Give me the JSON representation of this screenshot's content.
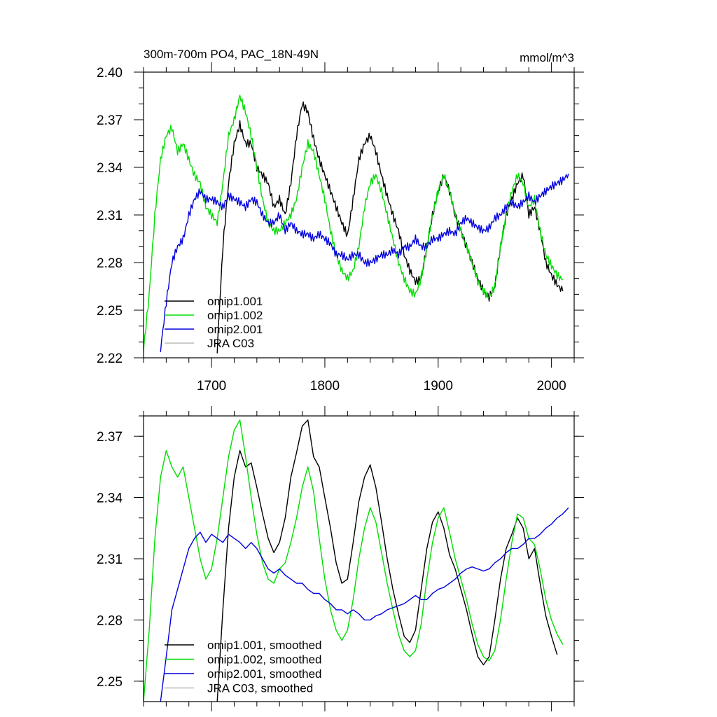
{
  "chart_data": [
    {
      "type": "line",
      "title": "300m-700m PO4, PAC_18N-49N",
      "units": "mmol/m^3",
      "xlim": [
        1640,
        2020
      ],
      "ylim": [
        2.22,
        2.4
      ],
      "xticks": [
        1700,
        1800,
        1900,
        2000
      ],
      "xtick_labels": [
        "1700",
        "1800",
        "1900",
        "2000"
      ],
      "yticks": [
        2.22,
        2.25,
        2.28,
        2.31,
        2.34,
        2.37,
        2.4
      ],
      "ytick_labels": [
        "2.22",
        "2.25",
        "2.28",
        "2.31",
        "2.34",
        "2.37",
        "2.40"
      ],
      "legend": "bottom-left",
      "series": [
        {
          "name": "omip1.001",
          "color": "#000000",
          "x": [
            1705,
            1710,
            1715,
            1720,
            1725,
            1730,
            1735,
            1740,
            1745,
            1750,
            1755,
            1760,
            1765,
            1770,
            1775,
            1780,
            1785,
            1790,
            1795,
            1800,
            1805,
            1810,
            1815,
            1820,
            1825,
            1830,
            1835,
            1840,
            1845,
            1850,
            1855,
            1860,
            1865,
            1870,
            1875,
            1880,
            1885,
            1890,
            1895,
            1900,
            1905,
            1910,
            1915,
            1920,
            1925,
            1930,
            1935,
            1940,
            1945,
            1950,
            1955,
            1960,
            1965,
            1970,
            1975,
            1980,
            1985,
            1990,
            1995,
            2000,
            2005,
            2010
          ],
          "y": [
            2.225,
            2.29,
            2.33,
            2.355,
            2.367,
            2.355,
            2.355,
            2.34,
            2.335,
            2.33,
            2.315,
            2.32,
            2.31,
            2.33,
            2.36,
            2.38,
            2.375,
            2.358,
            2.345,
            2.335,
            2.325,
            2.315,
            2.305,
            2.297,
            2.32,
            2.345,
            2.355,
            2.36,
            2.35,
            2.335,
            2.322,
            2.31,
            2.3,
            2.285,
            2.275,
            2.268,
            2.27,
            2.29,
            2.31,
            2.325,
            2.335,
            2.325,
            2.31,
            2.3,
            2.29,
            2.28,
            2.27,
            2.262,
            2.258,
            2.265,
            2.29,
            2.31,
            2.32,
            2.33,
            2.335,
            2.31,
            2.315,
            2.3,
            2.28,
            2.272,
            2.266,
            2.262
          ]
        },
        {
          "name": "omip1.002",
          "color": "#00dd00",
          "x": [
            1640,
            1645,
            1650,
            1655,
            1660,
            1665,
            1670,
            1675,
            1680,
            1685,
            1690,
            1695,
            1700,
            1705,
            1710,
            1715,
            1720,
            1725,
            1730,
            1735,
            1740,
            1745,
            1750,
            1755,
            1760,
            1765,
            1770,
            1775,
            1780,
            1785,
            1790,
            1795,
            1800,
            1805,
            1810,
            1815,
            1820,
            1825,
            1830,
            1835,
            1840,
            1845,
            1850,
            1855,
            1860,
            1865,
            1870,
            1875,
            1880,
            1885,
            1890,
            1895,
            1900,
            1905,
            1910,
            1915,
            1920,
            1925,
            1930,
            1935,
            1940,
            1945,
            1950,
            1955,
            1960,
            1965,
            1970,
            1975,
            1980,
            1985,
            1990,
            1995,
            2000,
            2005,
            2010
          ],
          "y": [
            2.225,
            2.26,
            2.31,
            2.345,
            2.36,
            2.365,
            2.35,
            2.355,
            2.345,
            2.335,
            2.33,
            2.315,
            2.31,
            2.305,
            2.33,
            2.36,
            2.37,
            2.385,
            2.375,
            2.36,
            2.34,
            2.32,
            2.305,
            2.3,
            2.3,
            2.305,
            2.31,
            2.32,
            2.34,
            2.355,
            2.35,
            2.335,
            2.32,
            2.3,
            2.285,
            2.275,
            2.27,
            2.275,
            2.29,
            2.315,
            2.33,
            2.335,
            2.325,
            2.31,
            2.295,
            2.28,
            2.27,
            2.262,
            2.26,
            2.27,
            2.29,
            2.31,
            2.325,
            2.335,
            2.325,
            2.31,
            2.3,
            2.29,
            2.28,
            2.268,
            2.262,
            2.258,
            2.265,
            2.29,
            2.31,
            2.325,
            2.335,
            2.33,
            2.315,
            2.32,
            2.3,
            2.285,
            2.278,
            2.272,
            2.269
          ]
        },
        {
          "name": "omip2.001",
          "color": "#0000dd",
          "x": [
            1655,
            1660,
            1665,
            1670,
            1675,
            1680,
            1685,
            1690,
            1695,
            1700,
            1705,
            1710,
            1715,
            1720,
            1725,
            1730,
            1735,
            1740,
            1745,
            1750,
            1755,
            1760,
            1765,
            1770,
            1775,
            1780,
            1785,
            1790,
            1795,
            1800,
            1805,
            1810,
            1815,
            1820,
            1825,
            1830,
            1835,
            1840,
            1845,
            1850,
            1855,
            1860,
            1865,
            1870,
            1875,
            1880,
            1885,
            1890,
            1895,
            1900,
            1905,
            1910,
            1915,
            1920,
            1925,
            1930,
            1935,
            1940,
            1945,
            1950,
            1955,
            1960,
            1965,
            1970,
            1975,
            1980,
            1985,
            1990,
            1995,
            2000,
            2005,
            2010,
            2015
          ],
          "y": [
            2.225,
            2.255,
            2.28,
            2.29,
            2.295,
            2.31,
            2.32,
            2.325,
            2.32,
            2.32,
            2.318,
            2.315,
            2.322,
            2.32,
            2.318,
            2.315,
            2.32,
            2.318,
            2.31,
            2.305,
            2.305,
            2.31,
            2.3,
            2.305,
            2.3,
            2.298,
            2.298,
            2.295,
            2.298,
            2.295,
            2.292,
            2.285,
            2.285,
            2.282,
            2.285,
            2.285,
            2.28,
            2.28,
            2.282,
            2.285,
            2.285,
            2.288,
            2.285,
            2.29,
            2.29,
            2.295,
            2.29,
            2.29,
            2.295,
            2.295,
            2.298,
            2.3,
            2.298,
            2.305,
            2.308,
            2.305,
            2.302,
            2.3,
            2.302,
            2.308,
            2.31,
            2.315,
            2.318,
            2.315,
            2.318,
            2.322,
            2.318,
            2.322,
            2.325,
            2.328,
            2.33,
            2.332,
            2.336
          ]
        },
        {
          "name": "JRA C03",
          "color": "#bbbbbb",
          "x": [],
          "y": []
        }
      ]
    },
    {
      "type": "line",
      "xlim": [
        1640,
        2020
      ],
      "ylim": [
        2.24,
        2.38
      ],
      "yticks": [
        2.25,
        2.28,
        2.31,
        2.34,
        2.37
      ],
      "ytick_labels": [
        "2.25",
        "2.28",
        "2.31",
        "2.34",
        "2.37"
      ],
      "legend": "bottom-left",
      "series": [
        {
          "name": "omip1.001, smoothed",
          "color": "#000000",
          "x": [
            1705,
            1710,
            1715,
            1720,
            1725,
            1730,
            1735,
            1740,
            1745,
            1750,
            1755,
            1760,
            1765,
            1770,
            1775,
            1780,
            1785,
            1790,
            1795,
            1800,
            1805,
            1810,
            1815,
            1820,
            1825,
            1830,
            1835,
            1840,
            1845,
            1850,
            1855,
            1860,
            1865,
            1870,
            1875,
            1880,
            1885,
            1890,
            1895,
            1900,
            1905,
            1910,
            1915,
            1920,
            1925,
            1930,
            1935,
            1940,
            1945,
            1950,
            1955,
            1960,
            1965,
            1970,
            1975,
            1980,
            1985,
            1990,
            1995,
            2000,
            2005
          ],
          "y": [
            2.24,
            2.285,
            2.325,
            2.35,
            2.363,
            2.355,
            2.357,
            2.345,
            2.332,
            2.32,
            2.313,
            2.318,
            2.33,
            2.35,
            2.362,
            2.375,
            2.378,
            2.36,
            2.355,
            2.34,
            2.325,
            2.308,
            2.298,
            2.3,
            2.318,
            2.338,
            2.35,
            2.356,
            2.345,
            2.328,
            2.31,
            2.295,
            2.283,
            2.272,
            2.269,
            2.275,
            2.295,
            2.315,
            2.328,
            2.333,
            2.325,
            2.312,
            2.305,
            2.295,
            2.285,
            2.273,
            2.262,
            2.258,
            2.262,
            2.28,
            2.3,
            2.315,
            2.322,
            2.33,
            2.325,
            2.31,
            2.315,
            2.298,
            2.282,
            2.272,
            2.263
          ]
        },
        {
          "name": "omip1.002, smoothed",
          "color": "#00dd00",
          "x": [
            1640,
            1645,
            1650,
            1655,
            1660,
            1665,
            1670,
            1675,
            1680,
            1685,
            1690,
            1695,
            1700,
            1705,
            1710,
            1715,
            1720,
            1725,
            1730,
            1735,
            1740,
            1745,
            1750,
            1755,
            1760,
            1765,
            1770,
            1775,
            1780,
            1785,
            1790,
            1795,
            1800,
            1805,
            1810,
            1815,
            1820,
            1825,
            1830,
            1835,
            1840,
            1845,
            1850,
            1855,
            1860,
            1865,
            1870,
            1875,
            1880,
            1885,
            1890,
            1895,
            1900,
            1905,
            1910,
            1915,
            1920,
            1925,
            1930,
            1935,
            1940,
            1945,
            1950,
            1955,
            1960,
            1965,
            1970,
            1975,
            1980,
            1985,
            1990,
            1995,
            2000,
            2005,
            2010
          ],
          "y": [
            2.24,
            2.275,
            2.32,
            2.35,
            2.363,
            2.355,
            2.35,
            2.355,
            2.34,
            2.325,
            2.31,
            2.3,
            2.305,
            2.32,
            2.34,
            2.36,
            2.373,
            2.378,
            2.36,
            2.34,
            2.322,
            2.308,
            2.3,
            2.298,
            2.305,
            2.308,
            2.318,
            2.33,
            2.345,
            2.355,
            2.343,
            2.32,
            2.3,
            2.285,
            2.275,
            2.27,
            2.275,
            2.29,
            2.31,
            2.325,
            2.335,
            2.328,
            2.313,
            2.298,
            2.285,
            2.273,
            2.265,
            2.262,
            2.265,
            2.278,
            2.3,
            2.318,
            2.33,
            2.335,
            2.323,
            2.31,
            2.3,
            2.29,
            2.278,
            2.268,
            2.262,
            2.26,
            2.265,
            2.28,
            2.3,
            2.318,
            2.332,
            2.33,
            2.32,
            2.317,
            2.305,
            2.29,
            2.28,
            2.273,
            2.268
          ]
        },
        {
          "name": "omip2.001, smoothed",
          "color": "#0000dd",
          "x": [
            1655,
            1660,
            1665,
            1670,
            1675,
            1680,
            1685,
            1690,
            1695,
            1700,
            1705,
            1710,
            1715,
            1720,
            1725,
            1730,
            1735,
            1740,
            1745,
            1750,
            1755,
            1760,
            1765,
            1770,
            1775,
            1780,
            1785,
            1790,
            1795,
            1800,
            1805,
            1810,
            1815,
            1820,
            1825,
            1830,
            1835,
            1840,
            1845,
            1850,
            1855,
            1860,
            1865,
            1870,
            1875,
            1880,
            1885,
            1890,
            1895,
            1900,
            1905,
            1910,
            1915,
            1920,
            1925,
            1930,
            1935,
            1940,
            1945,
            1950,
            1955,
            1960,
            1965,
            1970,
            1975,
            1980,
            1985,
            1990,
            1995,
            2000,
            2005,
            2010,
            2015
          ],
          "y": [
            2.24,
            2.262,
            2.285,
            2.295,
            2.305,
            2.315,
            2.32,
            2.323,
            2.318,
            2.322,
            2.32,
            2.318,
            2.322,
            2.32,
            2.318,
            2.315,
            2.318,
            2.315,
            2.31,
            2.305,
            2.303,
            2.305,
            2.302,
            2.3,
            2.298,
            2.298,
            2.295,
            2.293,
            2.293,
            2.29,
            2.288,
            2.285,
            2.285,
            2.283,
            2.285,
            2.283,
            2.28,
            2.28,
            2.282,
            2.283,
            2.285,
            2.286,
            2.287,
            2.288,
            2.29,
            2.292,
            2.29,
            2.29,
            2.293,
            2.295,
            2.296,
            2.298,
            2.3,
            2.303,
            2.305,
            2.306,
            2.305,
            2.304,
            2.305,
            2.308,
            2.31,
            2.313,
            2.315,
            2.315,
            2.317,
            2.32,
            2.32,
            2.322,
            2.325,
            2.327,
            2.33,
            2.332,
            2.335
          ]
        },
        {
          "name": "JRA C03, smoothed",
          "color": "#bbbbbb",
          "x": [],
          "y": []
        }
      ]
    }
  ]
}
